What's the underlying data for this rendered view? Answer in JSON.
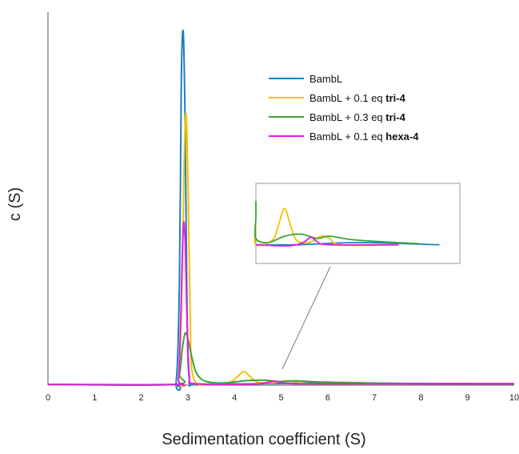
{
  "chart_data": {
    "type": "line",
    "title": "",
    "xlabel": "Sedimentation coefficient (S)",
    "ylabel": "c (S)",
    "xlim": [
      0,
      10
    ],
    "ylim": [
      0,
      1
    ],
    "x_ticks": [
      "0",
      "1",
      "2",
      "3",
      "4",
      "5",
      "6",
      "7",
      "8",
      "9",
      "10"
    ],
    "y_ticks_shown": false,
    "grid": false,
    "legend_position": "top-right",
    "series": [
      {
        "name": "BambL",
        "name_suffix": "",
        "color": "#1a7fc1",
        "points": [
          [
            0,
            0.002
          ],
          [
            2.6,
            0.002
          ],
          [
            2.75,
            0.01
          ],
          [
            2.82,
            0.3
          ],
          [
            2.86,
            0.85
          ],
          [
            2.9,
            0.99
          ],
          [
            2.94,
            0.75
          ],
          [
            2.98,
            0.25
          ],
          [
            3.03,
            0.02
          ],
          [
            3.2,
            0.004
          ],
          [
            4.5,
            0.004
          ],
          [
            6,
            0.006
          ],
          [
            8,
            0.004
          ],
          [
            10,
            0.004
          ]
        ]
      },
      {
        "name": "BambL + 0.1 eq ",
        "name_suffix": "tri-4",
        "color": "#f5c000",
        "points": [
          [
            0,
            0.002
          ],
          [
            2.7,
            0.002
          ],
          [
            2.8,
            0.02
          ],
          [
            2.87,
            0.25
          ],
          [
            2.92,
            0.62
          ],
          [
            2.96,
            0.76
          ],
          [
            3.0,
            0.6
          ],
          [
            3.05,
            0.2
          ],
          [
            3.12,
            0.02
          ],
          [
            3.5,
            0.004
          ],
          [
            3.9,
            0.008
          ],
          [
            4.05,
            0.022
          ],
          [
            4.2,
            0.038
          ],
          [
            4.35,
            0.022
          ],
          [
            4.5,
            0.008
          ],
          [
            4.8,
            0.006
          ],
          [
            5.1,
            0.012
          ],
          [
            5.3,
            0.01
          ],
          [
            5.6,
            0.004
          ],
          [
            7,
            0.004
          ],
          [
            10,
            0.004
          ]
        ]
      },
      {
        "name": "BambL + 0.3 eq ",
        "name_suffix": "tri-4",
        "color": "#3aa335",
        "points": [
          [
            0,
            0.002
          ],
          [
            2.7,
            0.002
          ],
          [
            2.82,
            0.03
          ],
          [
            2.88,
            0.1
          ],
          [
            2.94,
            0.145
          ],
          [
            3.0,
            0.13
          ],
          [
            3.1,
            0.07
          ],
          [
            3.2,
            0.03
          ],
          [
            3.4,
            0.01
          ],
          [
            3.8,
            0.006
          ],
          [
            4.2,
            0.012
          ],
          [
            4.6,
            0.014
          ],
          [
            5.0,
            0.01
          ],
          [
            5.3,
            0.012
          ],
          [
            5.8,
            0.009
          ],
          [
            6.5,
            0.007
          ],
          [
            7.5,
            0.005
          ],
          [
            10,
            0.004
          ]
        ]
      },
      {
        "name": "BambL + 0.1 eq ",
        "name_suffix": "hexa-4",
        "color": "#e020e0",
        "points": [
          [
            0,
            0.002
          ],
          [
            2.7,
            0.002
          ],
          [
            2.8,
            0.02
          ],
          [
            2.85,
            0.2
          ],
          [
            2.9,
            0.44
          ],
          [
            2.94,
            0.41
          ],
          [
            2.98,
            0.2
          ],
          [
            3.03,
            0.03
          ],
          [
            3.15,
            0.004
          ],
          [
            4.3,
            0.003
          ],
          [
            4.65,
            0.006
          ],
          [
            4.85,
            0.011
          ],
          [
            5.0,
            0.007
          ],
          [
            5.3,
            0.004
          ],
          [
            7,
            0.004
          ],
          [
            10,
            0.004
          ]
        ]
      }
    ],
    "inset": {
      "description_label": "",
      "x_range": [
        3.5,
        8.5
      ],
      "y_range": [
        0,
        0.045
      ]
    }
  }
}
